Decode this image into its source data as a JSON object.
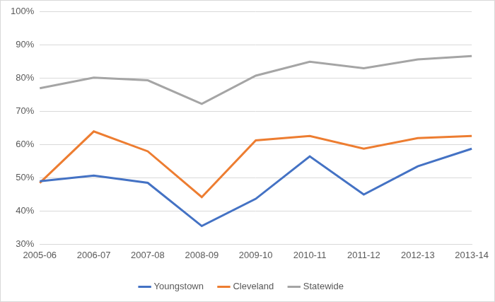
{
  "chart_data": {
    "type": "line",
    "categories": [
      "2005-06",
      "2006-07",
      "2007-08",
      "2008-09",
      "2009-10",
      "2010-11",
      "2011-12",
      "2012-13",
      "2013-14"
    ],
    "series": [
      {
        "name": "Youngstown",
        "color": "#4472c4",
        "values": [
          49,
          50.7,
          48.5,
          35.5,
          43.7,
          56.5,
          45,
          53.5,
          58.8
        ]
      },
      {
        "name": "Cleveland",
        "color": "#ed7d31",
        "values": [
          48.5,
          64,
          58,
          44.2,
          61.3,
          62.6,
          58.8,
          62,
          62.6
        ]
      },
      {
        "name": "Statewide",
        "color": "#a5a5a5",
        "values": [
          77,
          80.2,
          79.4,
          72.3,
          80.8,
          85,
          83,
          85.7,
          86.7
        ]
      }
    ],
    "ylim": [
      30,
      100
    ],
    "yticks": [
      {
        "value": 30,
        "label": "30%"
      },
      {
        "value": 40,
        "label": "40%"
      },
      {
        "value": 50,
        "label": "50%"
      },
      {
        "value": 60,
        "label": "60%"
      },
      {
        "value": 70,
        "label": "70%"
      },
      {
        "value": 80,
        "label": "80%"
      },
      {
        "value": 90,
        "label": "90%"
      },
      {
        "value": 100,
        "label": "100%"
      }
    ],
    "grid": true,
    "legend": "bottom"
  }
}
